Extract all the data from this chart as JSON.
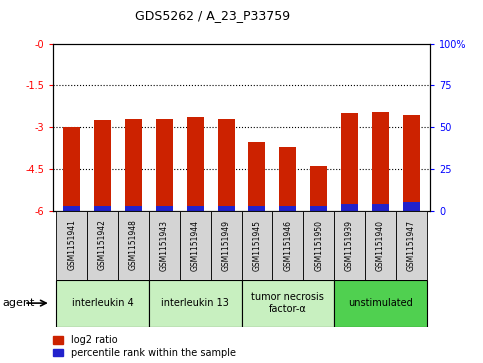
{
  "title": "GDS5262 / A_23_P33759",
  "samples": [
    "GSM1151941",
    "GSM1151942",
    "GSM1151948",
    "GSM1151943",
    "GSM1151944",
    "GSM1151949",
    "GSM1151945",
    "GSM1151946",
    "GSM1151950",
    "GSM1151939",
    "GSM1151940",
    "GSM1151947"
  ],
  "log2_ratios": [
    -3.0,
    -2.75,
    -2.72,
    -2.72,
    -2.65,
    -2.72,
    -3.55,
    -3.7,
    -4.4,
    -2.5,
    -2.45,
    -2.55
  ],
  "percentile_ranks": [
    3,
    3,
    3,
    3,
    3,
    3,
    3,
    3,
    3,
    4,
    4,
    5
  ],
  "groups": [
    {
      "label": "interleukin 4",
      "indices": [
        0,
        1,
        2
      ],
      "color": "#c8f0c0"
    },
    {
      "label": "interleukin 13",
      "indices": [
        3,
        4,
        5
      ],
      "color": "#c8f0c0"
    },
    {
      "label": "tumor necrosis\nfactor-α",
      "indices": [
        6,
        7,
        8
      ],
      "color": "#c8f0c0"
    },
    {
      "label": "unstimulated",
      "indices": [
        9,
        10,
        11
      ],
      "color": "#50d050"
    }
  ],
  "ylim_left": [
    -6,
    0
  ],
  "yticks_left": [
    -6,
    -4.5,
    -3.0,
    -1.5,
    0
  ],
  "ytick_labels_left": [
    "-6",
    "-4.5",
    "-3",
    "-1.5",
    "-0"
  ],
  "yticks_right_pct": [
    0,
    25,
    50,
    75,
    100
  ],
  "ytick_labels_right": [
    "0",
    "25",
    "50",
    "75",
    "100%"
  ],
  "bar_color_red": "#cc2200",
  "bar_color_blue": "#2222cc",
  "bar_width": 0.55,
  "background_color": "#ffffff",
  "agent_label": "agent",
  "legend_log2": "log2 ratio",
  "legend_pct": "percentile rank within the sample",
  "sample_box_color": "#d4d4d4",
  "grid_dotted_at": [
    -1.5,
    -3.0,
    -4.5
  ]
}
